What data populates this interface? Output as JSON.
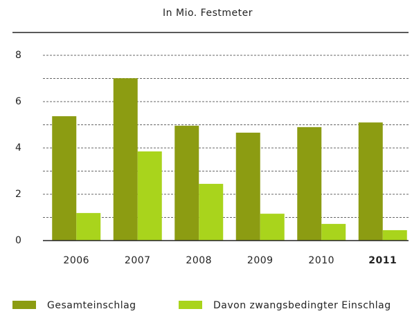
{
  "chart_data": {
    "type": "bar",
    "title": "In Mio. Festmeter",
    "categories": [
      "2006",
      "2007",
      "2008",
      "2009",
      "2010",
      "2011"
    ],
    "bold_category_index": 5,
    "series": [
      {
        "name": "Gesamteinschlag",
        "color": "#8c9c12",
        "values": [
          5.37,
          7.01,
          4.96,
          4.66,
          4.9,
          5.1
        ]
      },
      {
        "name": "Davon zwangsbedingter Einschlag",
        "color": "#a9d41c",
        "values": [
          1.19,
          3.85,
          2.45,
          1.16,
          0.72,
          0.45
        ]
      }
    ],
    "ylim": [
      0,
      8
    ],
    "yticks": [
      0,
      2,
      4,
      6,
      8
    ],
    "minor_yticks": [
      1,
      3,
      5,
      7
    ],
    "grid": true
  }
}
